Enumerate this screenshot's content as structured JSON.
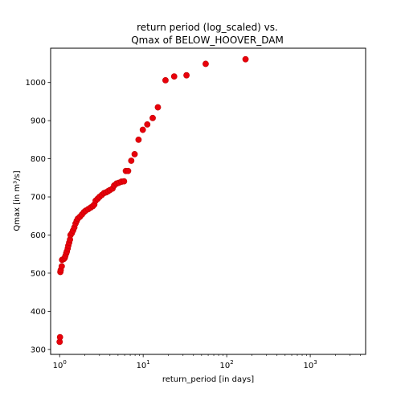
{
  "chart_data": {
    "type": "scatter",
    "title": [
      "return period (log_scaled) vs.",
      "Qmax of BELOW_HOOVER_DAM"
    ],
    "xlabel": "return_period [in days]",
    "ylabel": "Qmax [in m³/s]",
    "x_scale": "log",
    "xlim": [
      0.78,
      4600
    ],
    "ylim": [
      287,
      1090
    ],
    "grid": false,
    "legend": "none",
    "marker_color": "#e8000b",
    "marker_edge": "#c00000",
    "x_ticks": [
      {
        "value": 1,
        "label_base": "10",
        "label_exp": "0"
      },
      {
        "value": 10,
        "label_base": "10",
        "label_exp": "1"
      },
      {
        "value": 100,
        "label_base": "10",
        "label_exp": "2"
      },
      {
        "value": 1000,
        "label_base": "10",
        "label_exp": "3"
      }
    ],
    "y_ticks": [
      300,
      400,
      500,
      600,
      700,
      800,
      900,
      1000
    ],
    "points": [
      [
        1.0,
        320
      ],
      [
        1.01,
        332
      ],
      [
        1.02,
        503
      ],
      [
        1.03,
        508
      ],
      [
        1.06,
        518
      ],
      [
        1.07,
        535
      ],
      [
        1.12,
        537
      ],
      [
        1.15,
        540
      ],
      [
        1.17,
        545
      ],
      [
        1.2,
        552
      ],
      [
        1.22,
        557
      ],
      [
        1.25,
        565
      ],
      [
        1.27,
        572
      ],
      [
        1.3,
        580
      ],
      [
        1.33,
        588
      ],
      [
        1.35,
        600
      ],
      [
        1.4,
        605
      ],
      [
        1.45,
        612
      ],
      [
        1.5,
        620
      ],
      [
        1.55,
        630
      ],
      [
        1.6,
        637
      ],
      [
        1.65,
        643
      ],
      [
        1.75,
        648
      ],
      [
        1.85,
        654
      ],
      [
        1.95,
        660
      ],
      [
        2.05,
        664
      ],
      [
        2.2,
        668
      ],
      [
        2.35,
        672
      ],
      [
        2.5,
        676
      ],
      [
        2.6,
        680
      ],
      [
        2.7,
        690
      ],
      [
        2.85,
        695
      ],
      [
        3.0,
        700
      ],
      [
        3.2,
        705
      ],
      [
        3.4,
        710
      ],
      [
        3.6,
        712
      ],
      [
        3.8,
        715
      ],
      [
        4.0,
        718
      ],
      [
        4.3,
        722
      ],
      [
        4.5,
        730
      ],
      [
        4.8,
        735
      ],
      [
        5.1,
        737
      ],
      [
        5.5,
        740
      ],
      [
        5.9,
        741
      ],
      [
        6.2,
        768
      ],
      [
        6.6,
        768
      ],
      [
        7.2,
        795
      ],
      [
        7.9,
        812
      ],
      [
        8.8,
        850
      ],
      [
        9.9,
        876
      ],
      [
        11.2,
        890
      ],
      [
        13,
        907
      ],
      [
        15,
        935
      ],
      [
        18.5,
        1006
      ],
      [
        23.5,
        1016
      ],
      [
        33,
        1019
      ],
      [
        56,
        1049
      ],
      [
        168,
        1061
      ]
    ]
  }
}
